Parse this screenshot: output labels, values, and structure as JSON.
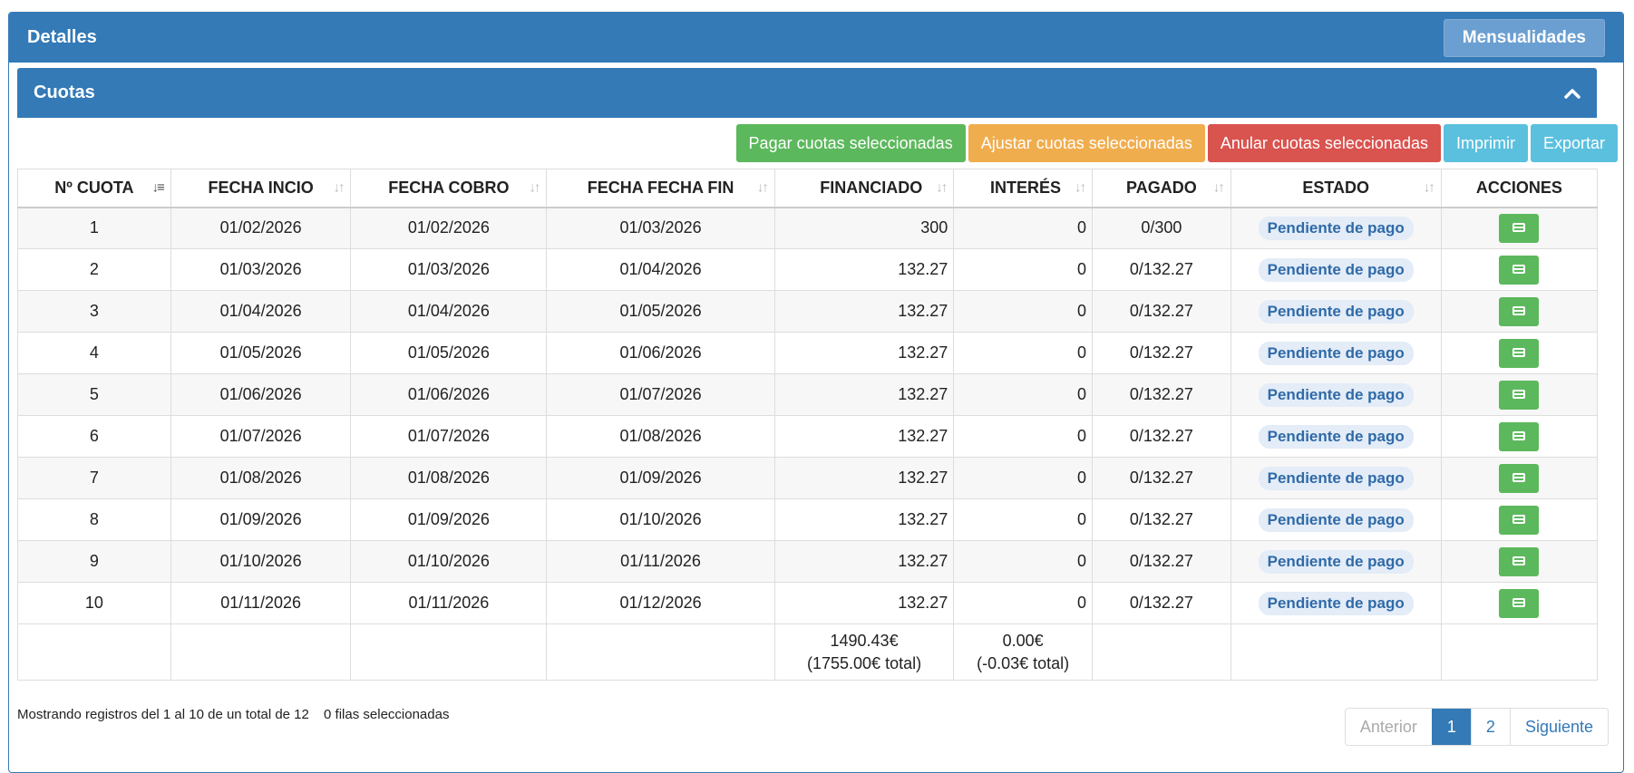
{
  "panel": {
    "title": "Detalles",
    "mensualidades_label": "Mensualidades"
  },
  "section": {
    "title": "Cuotas",
    "collapse_icon": "chevron-up-icon"
  },
  "toolbar": {
    "pay_label": "Pagar cuotas seleccionadas",
    "adjust_label": "Ajustar cuotas seleccionadas",
    "cancel_label": "Anular cuotas seleccionadas",
    "print_label": "Imprimir",
    "export_label": "Exportar"
  },
  "colors": {
    "primary": "#337ab7",
    "success": "#5cb85c",
    "warning": "#f0ad4e",
    "danger": "#d9534f",
    "info": "#5bc0de"
  },
  "table": {
    "headers": [
      "Nº CUOTA",
      "FECHA INCIO",
      "FECHA COBRO",
      "FECHA FECHA FIN",
      "FINANCIADO",
      "INTERÉS",
      "PAGADO",
      "ESTADO",
      "ACCIONES"
    ],
    "rows": [
      {
        "n": "1",
        "inicio": "01/02/2026",
        "cobro": "01/02/2026",
        "fin": "01/03/2026",
        "financiado": "300",
        "interes": "0",
        "pagado": "0/300",
        "estado": "Pendiente de pago"
      },
      {
        "n": "2",
        "inicio": "01/03/2026",
        "cobro": "01/03/2026",
        "fin": "01/04/2026",
        "financiado": "132.27",
        "interes": "0",
        "pagado": "0/132.27",
        "estado": "Pendiente de pago"
      },
      {
        "n": "3",
        "inicio": "01/04/2026",
        "cobro": "01/04/2026",
        "fin": "01/05/2026",
        "financiado": "132.27",
        "interes": "0",
        "pagado": "0/132.27",
        "estado": "Pendiente de pago"
      },
      {
        "n": "4",
        "inicio": "01/05/2026",
        "cobro": "01/05/2026",
        "fin": "01/06/2026",
        "financiado": "132.27",
        "interes": "0",
        "pagado": "0/132.27",
        "estado": "Pendiente de pago"
      },
      {
        "n": "5",
        "inicio": "01/06/2026",
        "cobro": "01/06/2026",
        "fin": "01/07/2026",
        "financiado": "132.27",
        "interes": "0",
        "pagado": "0/132.27",
        "estado": "Pendiente de pago"
      },
      {
        "n": "6",
        "inicio": "01/07/2026",
        "cobro": "01/07/2026",
        "fin": "01/08/2026",
        "financiado": "132.27",
        "interes": "0",
        "pagado": "0/132.27",
        "estado": "Pendiente de pago"
      },
      {
        "n": "7",
        "inicio": "01/08/2026",
        "cobro": "01/08/2026",
        "fin": "01/09/2026",
        "financiado": "132.27",
        "interes": "0",
        "pagado": "0/132.27",
        "estado": "Pendiente de pago"
      },
      {
        "n": "8",
        "inicio": "01/09/2026",
        "cobro": "01/09/2026",
        "fin": "01/10/2026",
        "financiado": "132.27",
        "interes": "0",
        "pagado": "0/132.27",
        "estado": "Pendiente de pago"
      },
      {
        "n": "9",
        "inicio": "01/10/2026",
        "cobro": "01/10/2026",
        "fin": "01/11/2026",
        "financiado": "132.27",
        "interes": "0",
        "pagado": "0/132.27",
        "estado": "Pendiente de pago"
      },
      {
        "n": "10",
        "inicio": "01/11/2026",
        "cobro": "01/11/2026",
        "fin": "01/12/2026",
        "financiado": "132.27",
        "interes": "0",
        "pagado": "0/132.27",
        "estado": "Pendiente de pago"
      }
    ],
    "action_icon": "credit-card-icon",
    "footer": {
      "financiado_line1": "1490.43€",
      "financiado_line2": "(1755.00€ total)",
      "interes_line1": "0.00€",
      "interes_line2": "(-0.03€ total)"
    }
  },
  "info": {
    "records": "Mostrando registros del 1 al 10 de un total de 12",
    "selected": "0 filas seleccionadas"
  },
  "pagination": {
    "prev": "Anterior",
    "pages": [
      "1",
      "2"
    ],
    "current": "1",
    "next": "Siguiente"
  }
}
